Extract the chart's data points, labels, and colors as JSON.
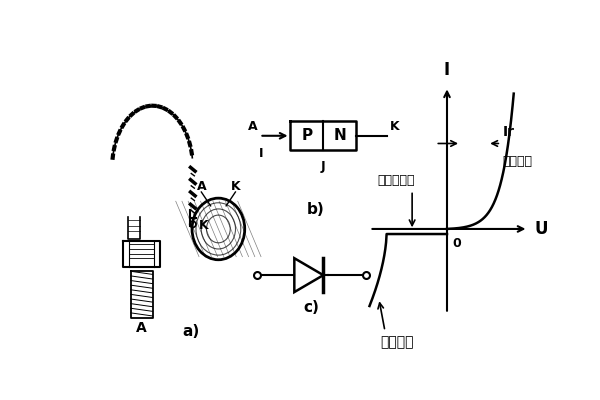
{
  "bg_color": "#ffffff",
  "fig_width": 6.0,
  "fig_height": 4.0,
  "dpi": 100,
  "label_a_bolt": "A",
  "label_k_chain": "K",
  "label_a_disc": "A",
  "label_k_disc": "K",
  "label_a_sub": "a)",
  "label_b_sub": "b)",
  "label_c_sub": "c)",
  "pn_P": "P",
  "pn_N": "N",
  "pn_A": "A",
  "pn_K": "K",
  "pn_I": "I",
  "pn_J": "J",
  "axis_I": "I",
  "axis_U": "U",
  "axis_O": "0",
  "label_Ir": "Ir",
  "label_forward": "正向电压",
  "label_leakage": "反向漏电流",
  "label_breakdown": "反向击穿"
}
